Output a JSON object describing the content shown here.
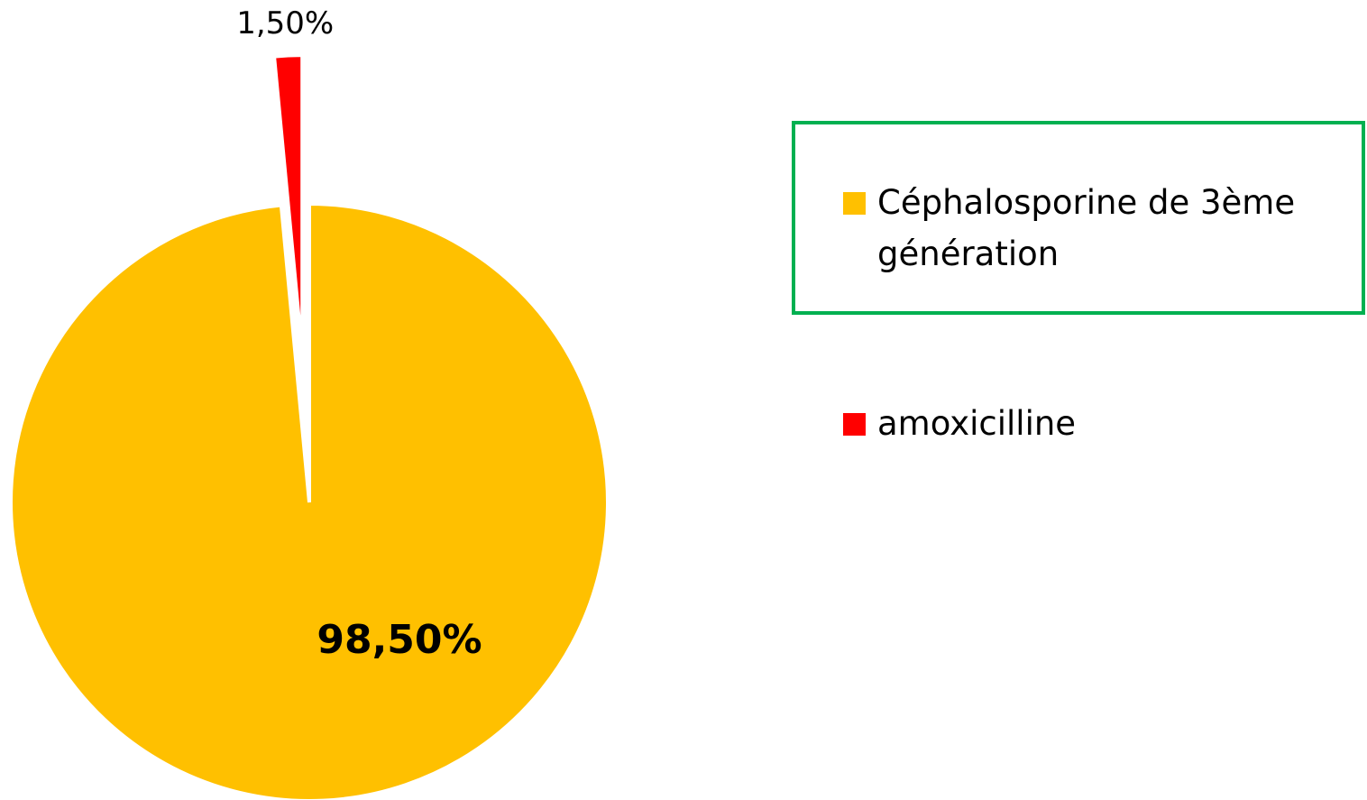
{
  "chart_data": {
    "type": "pie",
    "categories": [
      "Céphalosporine de 3ème génération",
      "amoxicilline"
    ],
    "values": [
      98.5,
      1.5
    ],
    "value_labels": [
      "98,50%",
      "1,50%"
    ],
    "colors": [
      "#ffc000",
      "#ff0000"
    ]
  }
}
